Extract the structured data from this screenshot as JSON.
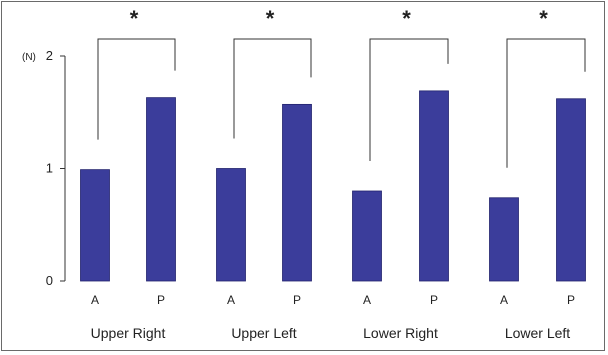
{
  "chart_data": {
    "type": "bar",
    "title": "",
    "xlabel": "",
    "ylabel": "(N)",
    "ylim": [
      0,
      2
    ],
    "yticks": [
      0,
      1,
      2
    ],
    "grid": false,
    "legend": "none",
    "bar_color": "#3b3d9b",
    "groups": [
      {
        "name": "Upper Right",
        "categories": [
          "A",
          "P"
        ],
        "values": [
          0.99,
          1.63
        ],
        "significance": "*"
      },
      {
        "name": "Upper Left",
        "categories": [
          "A",
          "P"
        ],
        "values": [
          1.0,
          1.57
        ],
        "significance": "*"
      },
      {
        "name": "Lower Right",
        "categories": [
          "A",
          "P"
        ],
        "values": [
          0.8,
          1.69
        ],
        "significance": "*"
      },
      {
        "name": "Lower Left",
        "categories": [
          "A",
          "P"
        ],
        "values": [
          0.74,
          1.62
        ],
        "significance": "*"
      }
    ]
  }
}
